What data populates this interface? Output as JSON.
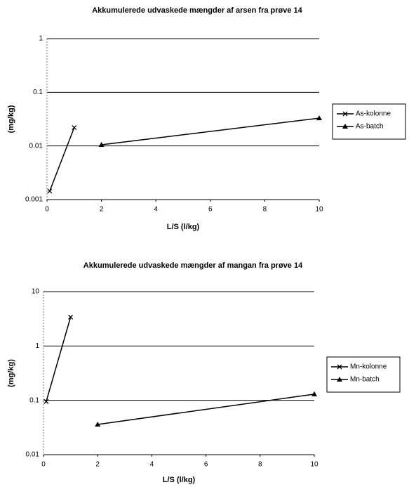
{
  "chart_data": [
    {
      "type": "line",
      "title": "Akkumulerede udvaskede mængder af arsen fra prøve 14",
      "x_label": "L/S (l/kg)",
      "y_label": "(mg/kg)",
      "xlim": [
        0,
        10
      ],
      "xticks": [
        0,
        2,
        4,
        6,
        8,
        10
      ],
      "ylim": [
        0.001,
        1
      ],
      "yticks": [
        1,
        0.1,
        0.01,
        0.001
      ],
      "log_scale": true,
      "grid": true,
      "legend": "right",
      "series": [
        {
          "name": "As-kolonne",
          "color": "#000000",
          "marker": "x",
          "x": [
            0.1,
            1
          ],
          "values": [
            0.00144,
            0.022
          ]
        },
        {
          "name": "As-batch",
          "color": "#000000",
          "marker": "triangle",
          "x": [
            2,
            10
          ],
          "values": [
            0.0105,
            0.033
          ]
        }
      ]
    },
    {
      "type": "line",
      "title": "Akkumulerede udvaskede mængder af mangan fra prøve 14",
      "x_label": "L/S (l/kg)",
      "y_label": "(mg/kg)",
      "xlim": [
        0,
        10
      ],
      "xticks": [
        0,
        2,
        4,
        6,
        8,
        10
      ],
      "ylim": [
        0.01,
        10
      ],
      "yticks": [
        10,
        1,
        0.1,
        0.01
      ],
      "log_scale": true,
      "grid": true,
      "legend": "right",
      "series": [
        {
          "name": "Mn-kolonne",
          "color": "#000000",
          "marker": "x",
          "x": [
            0.1,
            1
          ],
          "values": [
            0.095,
            3.4
          ]
        },
        {
          "name": "Mn-batch",
          "color": "#000000",
          "marker": "triangle",
          "x": [
            2,
            10
          ],
          "values": [
            0.036,
            0.13
          ]
        }
      ]
    }
  ]
}
